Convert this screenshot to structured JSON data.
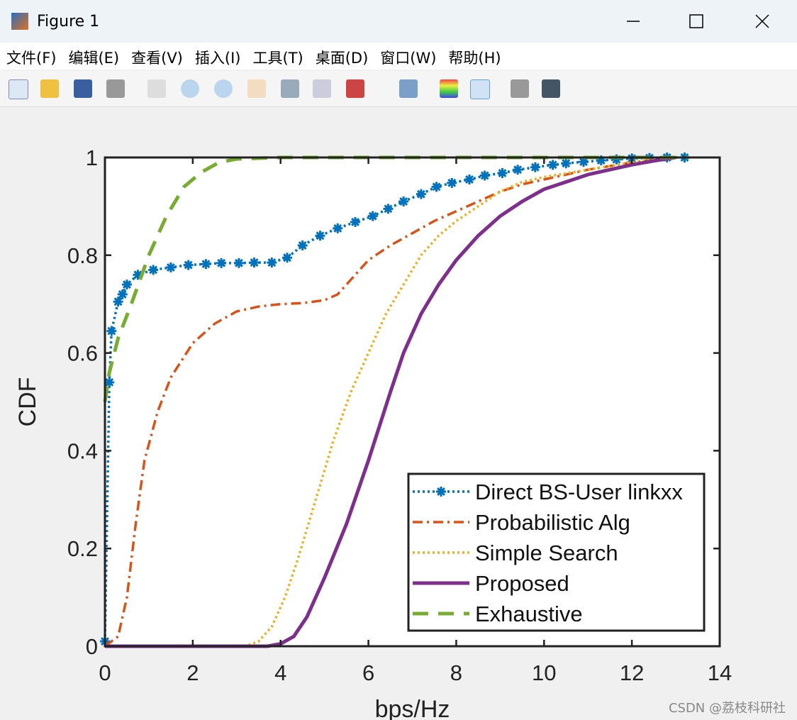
{
  "window": {
    "title": "Figure 1",
    "menu": [
      "文件(F)",
      "编辑(E)",
      "查看(V)",
      "插入(I)",
      "工具(T)",
      "桌面(D)",
      "窗口(W)",
      "帮助(H)"
    ],
    "watermark": "CSDN @荔枝科研社"
  },
  "chart_data": {
    "type": "line",
    "xlabel": "bps/Hz",
    "ylabel": "CDF",
    "xlim": [
      0,
      14
    ],
    "ylim": [
      0,
      1
    ],
    "xticks": [
      0,
      2,
      4,
      6,
      8,
      10,
      12,
      14
    ],
    "yticks": [
      0,
      0.2,
      0.4,
      0.6,
      0.8,
      1
    ],
    "grid": false,
    "legend": "southeast",
    "series": [
      {
        "name": "Direct BS-User linkxx",
        "color": "#0072bd",
        "style": "dotted",
        "marker": "asterisk",
        "x": [
          0,
          0.1,
          0.15,
          0.3,
          0.4,
          0.5,
          0.75,
          1.1,
          1.5,
          1.9,
          2.3,
          2.65,
          3.05,
          3.4,
          3.8,
          4.15,
          4.5,
          4.9,
          5.3,
          5.7,
          6.1,
          6.45,
          6.8,
          7.2,
          7.55,
          7.9,
          8.3,
          8.65,
          9.05,
          9.4,
          9.8,
          10.2,
          10.5,
          10.9,
          11.3,
          11.65,
          12.0,
          12.4,
          12.8,
          13.2
        ],
        "values": [
          0.01,
          0.54,
          0.645,
          0.705,
          0.72,
          0.74,
          0.76,
          0.77,
          0.775,
          0.78,
          0.782,
          0.784,
          0.784,
          0.785,
          0.785,
          0.795,
          0.82,
          0.84,
          0.855,
          0.868,
          0.88,
          0.895,
          0.91,
          0.925,
          0.94,
          0.948,
          0.955,
          0.963,
          0.968,
          0.975,
          0.98,
          0.985,
          0.988,
          0.991,
          0.994,
          0.996,
          0.998,
          0.999,
          1,
          1
        ]
      },
      {
        "name": "Probabilistic Alg",
        "color": "#d95319",
        "style": "dashdot",
        "x": [
          0,
          0.3,
          0.5,
          0.7,
          0.9,
          1.2,
          1.5,
          2,
          2.5,
          3,
          3.5,
          4,
          4.5,
          5,
          5.3,
          5.6,
          6,
          6.5,
          7,
          7.5,
          8,
          8.5,
          9,
          9.5,
          10,
          11,
          12,
          13
        ],
        "values": [
          0,
          0.02,
          0.1,
          0.25,
          0.38,
          0.48,
          0.55,
          0.62,
          0.66,
          0.685,
          0.695,
          0.7,
          0.702,
          0.708,
          0.72,
          0.75,
          0.79,
          0.82,
          0.845,
          0.87,
          0.89,
          0.91,
          0.93,
          0.945,
          0.955,
          0.975,
          0.99,
          1
        ]
      },
      {
        "name": "Simple Search",
        "color": "#edb120",
        "style": "dotted",
        "x": [
          0,
          3.2,
          3.5,
          3.8,
          4.1,
          4.4,
          4.8,
          5.2,
          5.6,
          6,
          6.4,
          6.8,
          7.2,
          7.6,
          8,
          8.5,
          9,
          9.5,
          10,
          11,
          12,
          13
        ],
        "values": [
          0,
          0,
          0.01,
          0.04,
          0.1,
          0.18,
          0.3,
          0.42,
          0.52,
          0.6,
          0.68,
          0.74,
          0.8,
          0.84,
          0.87,
          0.9,
          0.93,
          0.95,
          0.96,
          0.975,
          0.99,
          1
        ]
      },
      {
        "name": "Proposed",
        "color": "#7e2f8e",
        "style": "solid",
        "x": [
          0,
          3.7,
          4,
          4.3,
          4.6,
          5,
          5.5,
          6,
          6.5,
          6.8,
          7.2,
          7.6,
          8,
          8.5,
          9,
          9.5,
          10,
          10.5,
          11,
          11.5,
          12,
          12.5,
          13
        ],
        "values": [
          0,
          0,
          0.005,
          0.02,
          0.06,
          0.14,
          0.25,
          0.38,
          0.52,
          0.6,
          0.68,
          0.74,
          0.79,
          0.84,
          0.88,
          0.91,
          0.935,
          0.95,
          0.965,
          0.975,
          0.985,
          0.993,
          1
        ]
      },
      {
        "name": "Exhaustive",
        "color": "#77ac30",
        "style": "dashed",
        "x": [
          0,
          0.1,
          0.3,
          0.6,
          1,
          1.4,
          1.8,
          2.2,
          2.6,
          3,
          4,
          6,
          8,
          10,
          12,
          13.3
        ],
        "values": [
          0.5,
          0.56,
          0.63,
          0.7,
          0.8,
          0.88,
          0.94,
          0.97,
          0.99,
          0.997,
          1,
          1,
          1,
          1,
          1,
          1
        ]
      }
    ]
  }
}
